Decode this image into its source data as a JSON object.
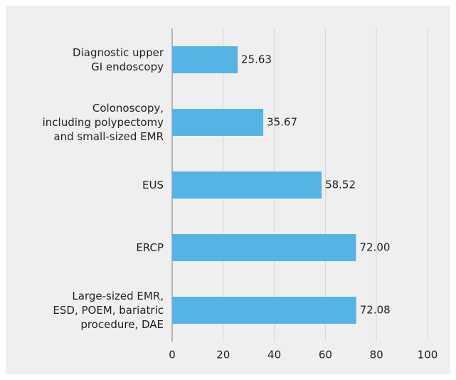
{
  "chart_data": {
    "type": "bar",
    "orientation": "horizontal",
    "categories": [
      [
        "Diagnostic upper",
        "GI endoscopy"
      ],
      [
        "Colonoscopy,",
        "including polypectomy",
        "and small-sized EMR"
      ],
      [
        "EUS"
      ],
      [
        "ERCP"
      ],
      [
        "Large-sized EMR,",
        "ESD, POEM, bariatric",
        "procedure, DAE"
      ]
    ],
    "values": [
      25.63,
      35.67,
      58.52,
      72.0,
      72.08
    ],
    "value_labels": [
      "25.63",
      "35.67",
      "58.52",
      "72.00",
      "72.08"
    ],
    "color": "#56b4e5",
    "xlim": [
      0,
      100
    ],
    "xticks": [
      0,
      20,
      40,
      60,
      80,
      100
    ],
    "grid": true
  }
}
